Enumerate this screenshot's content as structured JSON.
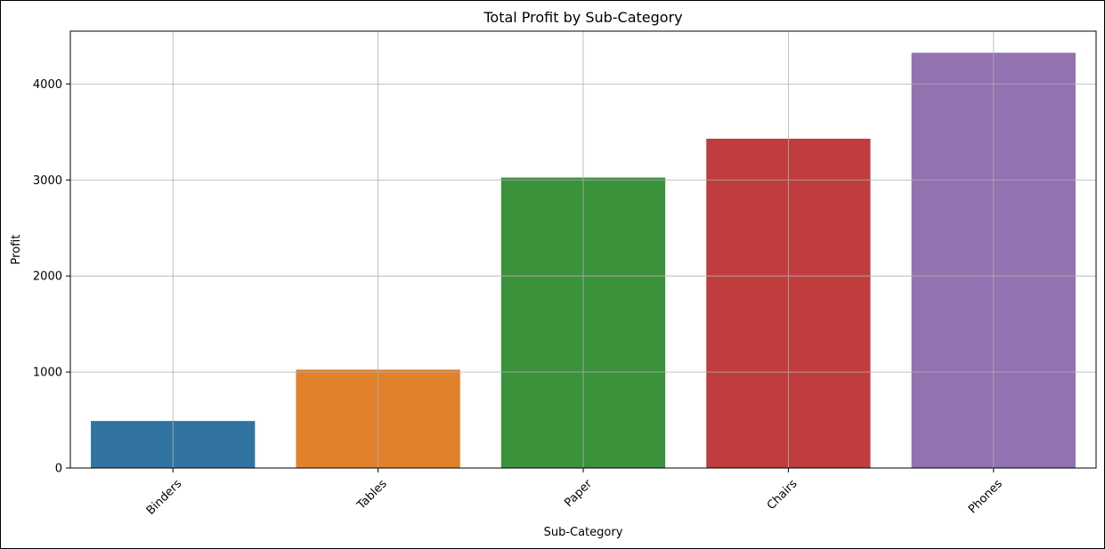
{
  "chart_data": {
    "type": "bar",
    "title": "Total Profit by Sub-Category",
    "xlabel": "Sub-Category",
    "ylabel": "Profit",
    "categories": [
      "Binders",
      "Tables",
      "Paper",
      "Chairs",
      "Phones"
    ],
    "values": [
      490,
      1025,
      3025,
      3430,
      4325
    ],
    "colors": [
      "#3274a1",
      "#e1812c",
      "#3a923a",
      "#c03d3e",
      "#9372b2"
    ],
    "ylim": [
      0,
      4550
    ],
    "yticks": [
      0,
      1000,
      2000,
      3000,
      4000
    ],
    "grid": true,
    "xtick_rotation": -45
  }
}
